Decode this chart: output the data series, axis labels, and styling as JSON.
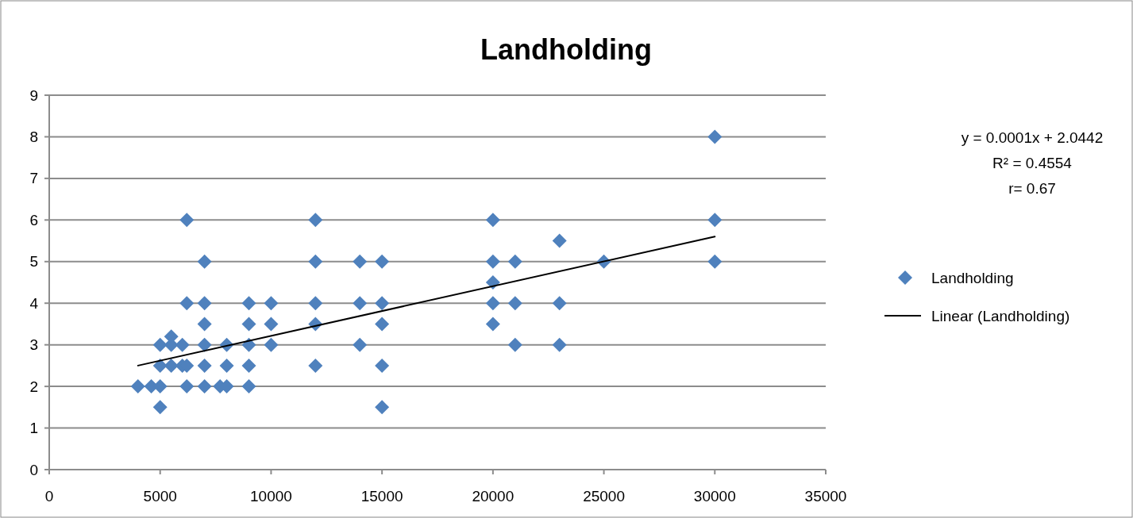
{
  "chart_data": {
    "type": "scatter",
    "title": "Landholding",
    "xlim": [
      0,
      35000
    ],
    "xticks": [
      0,
      5000,
      10000,
      15000,
      20000,
      25000,
      30000,
      35000
    ],
    "ylim": [
      0,
      9
    ],
    "yticks": [
      0,
      1,
      2,
      3,
      4,
      5,
      6,
      7,
      8,
      9
    ],
    "grid": "y",
    "legend": "right",
    "annotations": [
      "y = 0.0001x + 2.0442",
      "R² = 0.4554",
      "r= 0.67"
    ],
    "series": [
      {
        "name": "Landholding",
        "marker": "diamond",
        "color": "#4f81bd",
        "x": [
          4000,
          4600,
          5000,
          5000,
          5000,
          5000,
          5500,
          5500,
          5500,
          6000,
          6000,
          6200,
          6200,
          6200,
          6200,
          7000,
          7000,
          7000,
          7000,
          7000,
          7000,
          7700,
          8000,
          8000,
          8000,
          9000,
          9000,
          9000,
          9000,
          9000,
          10000,
          10000,
          10000,
          12000,
          12000,
          12000,
          12000,
          12000,
          14000,
          14000,
          14000,
          15000,
          15000,
          15000,
          15000,
          15000,
          20000,
          20000,
          20000,
          20000,
          20000,
          21000,
          21000,
          21000,
          23000,
          23000,
          23000,
          25000,
          30000,
          30000,
          30000
        ],
        "values": [
          2,
          2,
          3,
          2.5,
          2,
          1.5,
          3.2,
          3,
          2.5,
          3,
          2.5,
          6,
          4,
          2.5,
          2,
          5,
          4,
          3.5,
          3,
          2.5,
          2,
          2,
          3,
          2.5,
          2,
          4,
          3.5,
          3,
          2.5,
          2,
          4,
          3.5,
          3,
          6,
          5,
          4,
          3.5,
          2.5,
          5,
          4,
          3,
          5,
          4,
          3.5,
          2.5,
          1.5,
          6,
          5,
          4.5,
          4,
          3.5,
          5,
          4,
          3,
          5.5,
          4,
          3,
          5,
          8,
          6,
          5
        ]
      },
      {
        "name": "Linear (Landholding)",
        "type": "line",
        "marker": "none",
        "line_style": "solid",
        "color": "#000000",
        "x": [
          4000,
          30000
        ],
        "values": [
          2.5,
          5.6
        ]
      }
    ]
  }
}
